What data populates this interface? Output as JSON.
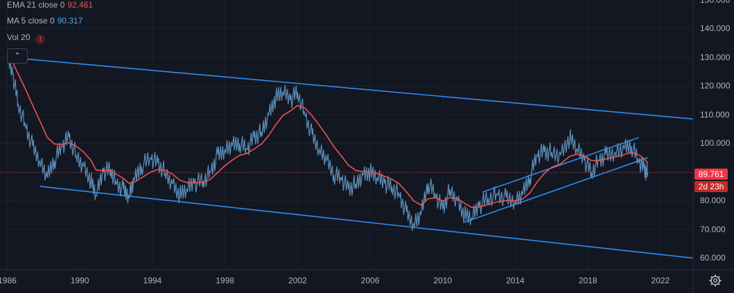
{
  "indicators": [
    {
      "label": "EMA 21 close 0",
      "value": "92.461"
    },
    {
      "label": "MA 5 close 0",
      "value": "90.317"
    },
    {
      "label": "Vol 20"
    }
  ],
  "icons": {
    "warning": "exclamation-icon",
    "collapse": "chevron-up-icon",
    "settings": "gear-icon"
  },
  "price_badge": {
    "value": "89.761",
    "timer": "2d 23h"
  },
  "colors": {
    "background": "#131722",
    "price": "#5b8fb9",
    "ema": "#ef5350",
    "trendline": "#2f8cf0",
    "badge": "#f23645"
  },
  "chart_data": {
    "type": "line",
    "x_ticks": [
      "1986",
      "1990",
      "1994",
      "1998",
      "2002",
      "2006",
      "2010",
      "2014",
      "2018",
      "2022"
    ],
    "y_ticks": [
      "60.000",
      "70.000",
      "80.000",
      "90.000",
      "100.000",
      "110.000",
      "120.000",
      "130.000",
      "140.000",
      "150.000"
    ],
    "xlim": [
      1985.6,
      2023.8
    ],
    "ylim": [
      56,
      150
    ],
    "last_price": 89.761,
    "series": [
      {
        "values": [
          [
            1986.0,
            130
          ],
          [
            1986.3,
            124
          ],
          [
            1986.6,
            114
          ],
          [
            1987.0,
            106
          ],
          [
            1987.4,
            99
          ],
          [
            1987.8,
            94
          ],
          [
            1988.2,
            88
          ],
          [
            1988.6,
            94
          ],
          [
            1989.0,
            99
          ],
          [
            1989.4,
            102
          ],
          [
            1989.8,
            96
          ],
          [
            1990.2,
            92
          ],
          [
            1990.6,
            87
          ],
          [
            1990.9,
            82
          ],
          [
            1991.3,
            90
          ],
          [
            1991.7,
            91
          ],
          [
            1992.0,
            86
          ],
          [
            1992.4,
            84
          ],
          [
            1992.7,
            82
          ],
          [
            1993.0,
            87
          ],
          [
            1993.4,
            92
          ],
          [
            1993.9,
            95
          ],
          [
            1994.3,
            93
          ],
          [
            1994.7,
            90
          ],
          [
            1995.1,
            86
          ],
          [
            1995.5,
            82
          ],
          [
            1995.9,
            84
          ],
          [
            1996.3,
            86
          ],
          [
            1996.8,
            87
          ],
          [
            1997.2,
            90
          ],
          [
            1997.6,
            96
          ],
          [
            1998.0,
            98
          ],
          [
            1998.4,
            99
          ],
          [
            1998.8,
            100
          ],
          [
            1999.2,
            98
          ],
          [
            1999.6,
            102
          ],
          [
            2000.0,
            104
          ],
          [
            2000.4,
            110
          ],
          [
            2000.8,
            116
          ],
          [
            2001.2,
            118
          ],
          [
            2001.6,
            115
          ],
          [
            2002.0,
            118
          ],
          [
            2002.4,
            110
          ],
          [
            2002.8,
            103
          ],
          [
            2003.2,
            98
          ],
          [
            2003.6,
            94
          ],
          [
            2004.0,
            89
          ],
          [
            2004.4,
            88
          ],
          [
            2004.8,
            84
          ],
          [
            2005.2,
            86
          ],
          [
            2005.6,
            89
          ],
          [
            2006.0,
            90
          ],
          [
            2006.4,
            88
          ],
          [
            2006.8,
            86
          ],
          [
            2007.2,
            85
          ],
          [
            2007.6,
            82
          ],
          [
            2008.0,
            76
          ],
          [
            2008.4,
            72
          ],
          [
            2008.8,
            75
          ],
          [
            2009.2,
            86
          ],
          [
            2009.6,
            82
          ],
          [
            2010.0,
            77
          ],
          [
            2010.4,
            84
          ],
          [
            2010.8,
            80
          ],
          [
            2011.2,
            75
          ],
          [
            2011.6,
            74
          ],
          [
            2012.0,
            78
          ],
          [
            2012.5,
            81
          ],
          [
            2013.0,
            82
          ],
          [
            2013.5,
            81
          ],
          [
            2014.0,
            80
          ],
          [
            2014.4,
            82
          ],
          [
            2014.8,
            88
          ],
          [
            2015.2,
            96
          ],
          [
            2015.6,
            97
          ],
          [
            2016.0,
            97
          ],
          [
            2016.5,
            96
          ],
          [
            2017.0,
            102
          ],
          [
            2017.4,
            98
          ],
          [
            2017.8,
            94
          ],
          [
            2018.2,
            90
          ],
          [
            2018.6,
            94
          ],
          [
            2019.0,
            96
          ],
          [
            2019.5,
            97
          ],
          [
            2020.0,
            98
          ],
          [
            2020.4,
            99
          ],
          [
            2020.8,
            94
          ],
          [
            2021.1,
            91
          ],
          [
            2021.3,
            89.8
          ]
        ]
      }
    ],
    "trendlines": [
      [
        [
          1986.0,
          130.0
        ],
        [
          2023.8,
          108.5
        ]
      ],
      [
        [
          1987.8,
          85.0
        ],
        [
          2023.8,
          60.0
        ]
      ],
      [
        [
          2011.2,
          72.5
        ],
        [
          2021.3,
          95.0
        ]
      ],
      [
        [
          2012.2,
          83.0
        ],
        [
          2020.8,
          102.0
        ]
      ]
    ]
  }
}
